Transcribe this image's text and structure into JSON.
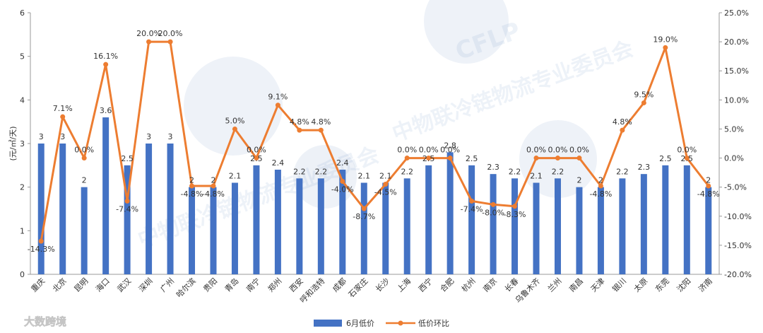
{
  "chart_data": {
    "type": "bar",
    "categories": [
      "重庆",
      "北京",
      "昆明",
      "海口",
      "武汉",
      "深圳",
      "广州",
      "哈尔滨",
      "贵阳",
      "青岛",
      "南宁",
      "郑州",
      "西安",
      "呼和浩特",
      "成都",
      "石家庄",
      "长沙",
      "上海",
      "西宁",
      "合肥",
      "杭州",
      "南京",
      "长春",
      "乌鲁木齐",
      "兰州",
      "南昌",
      "天津",
      "银川",
      "太原",
      "东莞",
      "沈阳",
      "济南"
    ],
    "series": [
      {
        "name": "6月低价",
        "type": "bar",
        "axis": "left",
        "color": "#4472C4",
        "values": [
          3,
          3,
          2,
          3.6,
          2.5,
          3,
          3,
          2,
          2,
          2.1,
          2.5,
          2.4,
          2.2,
          2.2,
          2.4,
          2.1,
          2.1,
          2.2,
          2.5,
          2.8,
          2.5,
          2.3,
          2.2,
          2.1,
          2.2,
          2,
          2,
          2.2,
          2.3,
          2.5,
          2.5,
          2
        ],
        "labels": [
          "3",
          "3",
          "2",
          "3.6",
          "2.5",
          "3",
          "3",
          "2",
          "2",
          "2.1",
          "2.5",
          "2.4",
          "2.2",
          "2.2",
          "2.4",
          "2.1",
          "2.1",
          "2.2",
          "2.5",
          "2.8",
          "2.5",
          "2.3",
          "2.2",
          "2.1",
          "2.2",
          "2",
          "2",
          "2.2",
          "2.3",
          "2.5",
          "2.5",
          "2"
        ]
      },
      {
        "name": "低价环比",
        "type": "line",
        "axis": "right",
        "color": "#ED7D31",
        "values": [
          -14.3,
          7.1,
          0.0,
          16.1,
          -7.4,
          20.0,
          20.0,
          -4.8,
          -4.8,
          5.0,
          0.0,
          9.1,
          4.8,
          4.8,
          -4.0,
          -8.7,
          -4.5,
          0.0,
          0.0,
          0.0,
          -7.4,
          -8.0,
          -8.3,
          0.0,
          0.0,
          0.0,
          -4.8,
          4.8,
          9.5,
          19.0,
          0.0,
          -4.8
        ],
        "labels": [
          "-14.3%",
          "7.1%",
          "0.0%",
          "16.1%",
          "-7.4%",
          "20.0%",
          "20.0%",
          "-4.8%",
          "-4.8%",
          "5.0%",
          "0.0%",
          "9.1%",
          "4.8%",
          "4.8%",
          "-4.0%",
          "-8.7%",
          "-4.5%",
          "0.0%",
          "0.0%",
          "0.0%",
          "-7.4%",
          "-8.0%",
          "-8.3%",
          "0.0%",
          "0.0%",
          "0.0%",
          "-4.8%",
          "4.8%",
          "9.5%",
          "19.0%",
          "0.0%",
          "-4.8%"
        ]
      }
    ],
    "ylabel": "(元/㎡/天)",
    "ylim": [
      0,
      6
    ],
    "yticks": [
      "0",
      "1",
      "2",
      "3",
      "4",
      "5",
      "6"
    ],
    "y2lim": [
      -20,
      25
    ],
    "y2ticks": [
      "-20.0%",
      "-15.0%",
      "-10.0%",
      "-5.0%",
      "0.0%",
      "5.0%",
      "10.0%",
      "15.0%",
      "20.0%",
      "25.0%"
    ],
    "grid": false,
    "legend_position": "bottom"
  },
  "watermark": {
    "brand": "大数跨境",
    "logo_text": "CFLP",
    "text": "中物联冷链物流专业委员会"
  }
}
